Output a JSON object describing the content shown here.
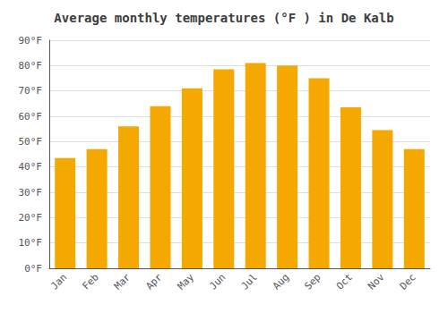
{
  "chart_data": {
    "type": "bar",
    "title": "Average monthly temperatures (°F ) in De Kalb",
    "categories": [
      "Jan",
      "Feb",
      "Mar",
      "Apr",
      "May",
      "Jun",
      "Jul",
      "Aug",
      "Sep",
      "Oct",
      "Nov",
      "Dec"
    ],
    "values": [
      43.5,
      47.0,
      56.0,
      64.0,
      71.0,
      78.5,
      81.0,
      80.0,
      75.0,
      63.5,
      54.5,
      47.0
    ],
    "color": "#F5A800",
    "ylim": [
      0,
      90
    ],
    "yticks": [
      {
        "value": 0,
        "label": "0°F"
      },
      {
        "value": 10,
        "label": "10°F"
      },
      {
        "value": 20,
        "label": "20°F"
      },
      {
        "value": 30,
        "label": "30°F"
      },
      {
        "value": 40,
        "label": "40°F"
      },
      {
        "value": 50,
        "label": "50°F"
      },
      {
        "value": 60,
        "label": "60°F"
      },
      {
        "value": 70,
        "label": "70°F"
      },
      {
        "value": 80,
        "label": "80°F"
      },
      {
        "value": 90,
        "label": "90°F"
      }
    ],
    "grid": true
  }
}
